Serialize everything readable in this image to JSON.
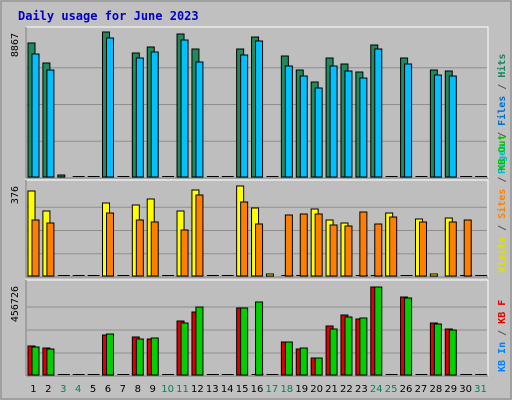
{
  "chart_data": {
    "type": "bar",
    "title": "Daily usage for June 2023",
    "title_color": "#0000cc",
    "frame": {
      "background": "#c0c0c0",
      "plot_background": "#bebebe",
      "grid_color": "#8f8f8f"
    },
    "x": [
      "1",
      "2",
      "3",
      "4",
      "5",
      "6",
      "7",
      "8",
      "9",
      "10",
      "11",
      "12",
      "13",
      "14",
      "15",
      "16",
      "17",
      "18",
      "19",
      "20",
      "21",
      "22",
      "23",
      "24",
      "25",
      "26",
      "27",
      "28",
      "29",
      "30",
      "31"
    ],
    "weekend_days": [
      "3",
      "4",
      "10",
      "11",
      "17",
      "18",
      "24",
      "25",
      "31"
    ],
    "weekday_color": "#000000",
    "weekend_color": "#00805a",
    "panels": [
      {
        "id": "pages-files-hits",
        "ymax_label": "8867",
        "ymax": 8867,
        "legend": [
          {
            "text": "Pages",
            "color": "#00c0c0"
          },
          {
            "text": " / ",
            "color": "#555555"
          },
          {
            "text": "Files",
            "color": "#0070d0"
          },
          {
            "text": " / ",
            "color": "#555555"
          },
          {
            "text": "Hits",
            "color": "#208060"
          }
        ],
        "series": [
          {
            "name": "Hits",
            "color": "#1e8a5e",
            "values": [
              8170,
              7000,
              30,
              0,
              0,
              8850,
              0,
              7600,
              7950,
              0,
              8760,
              7810,
              0,
              0,
              7840,
              8580,
              0,
              7420,
              6520,
              5800,
              7250,
              6900,
              6400,
              8100,
              0,
              7290,
              0,
              6560,
              6470,
              0,
              0
            ]
          },
          {
            "name": "Files",
            "color": "#00c0ff",
            "values": [
              7500,
              6570,
              0,
              0,
              0,
              8480,
              0,
              7290,
              7620,
              0,
              8380,
              7040,
              0,
              0,
              7490,
              8300,
              0,
              6800,
              6200,
              5450,
              6800,
              6500,
              6070,
              7800,
              0,
              6900,
              0,
              6220,
              6170,
              0,
              0
            ]
          },
          {
            "name": "Pages",
            "color": "#00d0d0",
            "values": [
              0,
              0,
              0,
              0,
              0,
              0,
              0,
              0,
              0,
              0,
              0,
              0,
              0,
              0,
              0,
              0,
              0,
              0,
              0,
              0,
              0,
              0,
              0,
              0,
              0,
              0,
              0,
              0,
              0,
              0,
              0
            ]
          }
        ]
      },
      {
        "id": "visits-sites",
        "ymax_label": "376",
        "ymax": 376,
        "legend": [
          {
            "text": "Visits",
            "color": "#e0e000"
          },
          {
            "text": " / ",
            "color": "#555555"
          },
          {
            "text": "Sites",
            "color": "#ff8000"
          },
          {
            "text": " / ",
            "color": "#555555"
          },
          {
            "text": "KB Out",
            "color": "#00c000"
          }
        ],
        "series": [
          {
            "name": "Visits",
            "color": "#ffff00",
            "values": [
              350,
              270,
              0,
              0,
              0,
              300,
              0,
              295,
              320,
              0,
              270,
              355,
              0,
              0,
              370,
              280,
              8,
              0,
              0,
              275,
              230,
              220,
              0,
              0,
              260,
              0,
              235,
              10,
              240,
              0,
              0
            ]
          },
          {
            "name": "Sites",
            "color": "#ff8000",
            "values": [
              230,
              220,
              0,
              0,
              0,
              260,
              0,
              230,
              225,
              0,
              190,
              335,
              0,
              0,
              305,
              215,
              0,
              250,
              255,
              255,
              210,
              205,
              265,
              215,
              245,
              0,
              225,
              0,
              225,
              230,
              0
            ]
          }
        ]
      },
      {
        "id": "kbin-kbf",
        "ymax_label": "456726",
        "ymax": 456726,
        "legend": [
          {
            "text": "KB In",
            "color": "#0080ff"
          },
          {
            "text": " / ",
            "color": "#555555"
          },
          {
            "text": "KB F",
            "color": "#e00000"
          }
        ],
        "series": [
          {
            "name": "KB F",
            "color": "#e00000",
            "values": [
              145000,
              135000,
              0,
              0,
              0,
              205000,
              0,
              195000,
              185000,
              0,
              275000,
              320000,
              0,
              0,
              340000,
              0,
              0,
              170000,
              130000,
              85000,
              250000,
              305000,
              285000,
              445000,
              0,
              395000,
              0,
              265000,
              235000,
              0,
              0
            ]
          },
          {
            "name": "KB In",
            "color": "#00d000",
            "values": [
              140000,
              130000,
              0,
              0,
              0,
              210000,
              0,
              185000,
              190000,
              0,
              265000,
              345000,
              0,
              0,
              340000,
              370000,
              0,
              170000,
              135000,
              85000,
              235000,
              295000,
              290000,
              445000,
              0,
              390000,
              0,
              260000,
              230000,
              0,
              0
            ]
          }
        ]
      }
    ]
  }
}
